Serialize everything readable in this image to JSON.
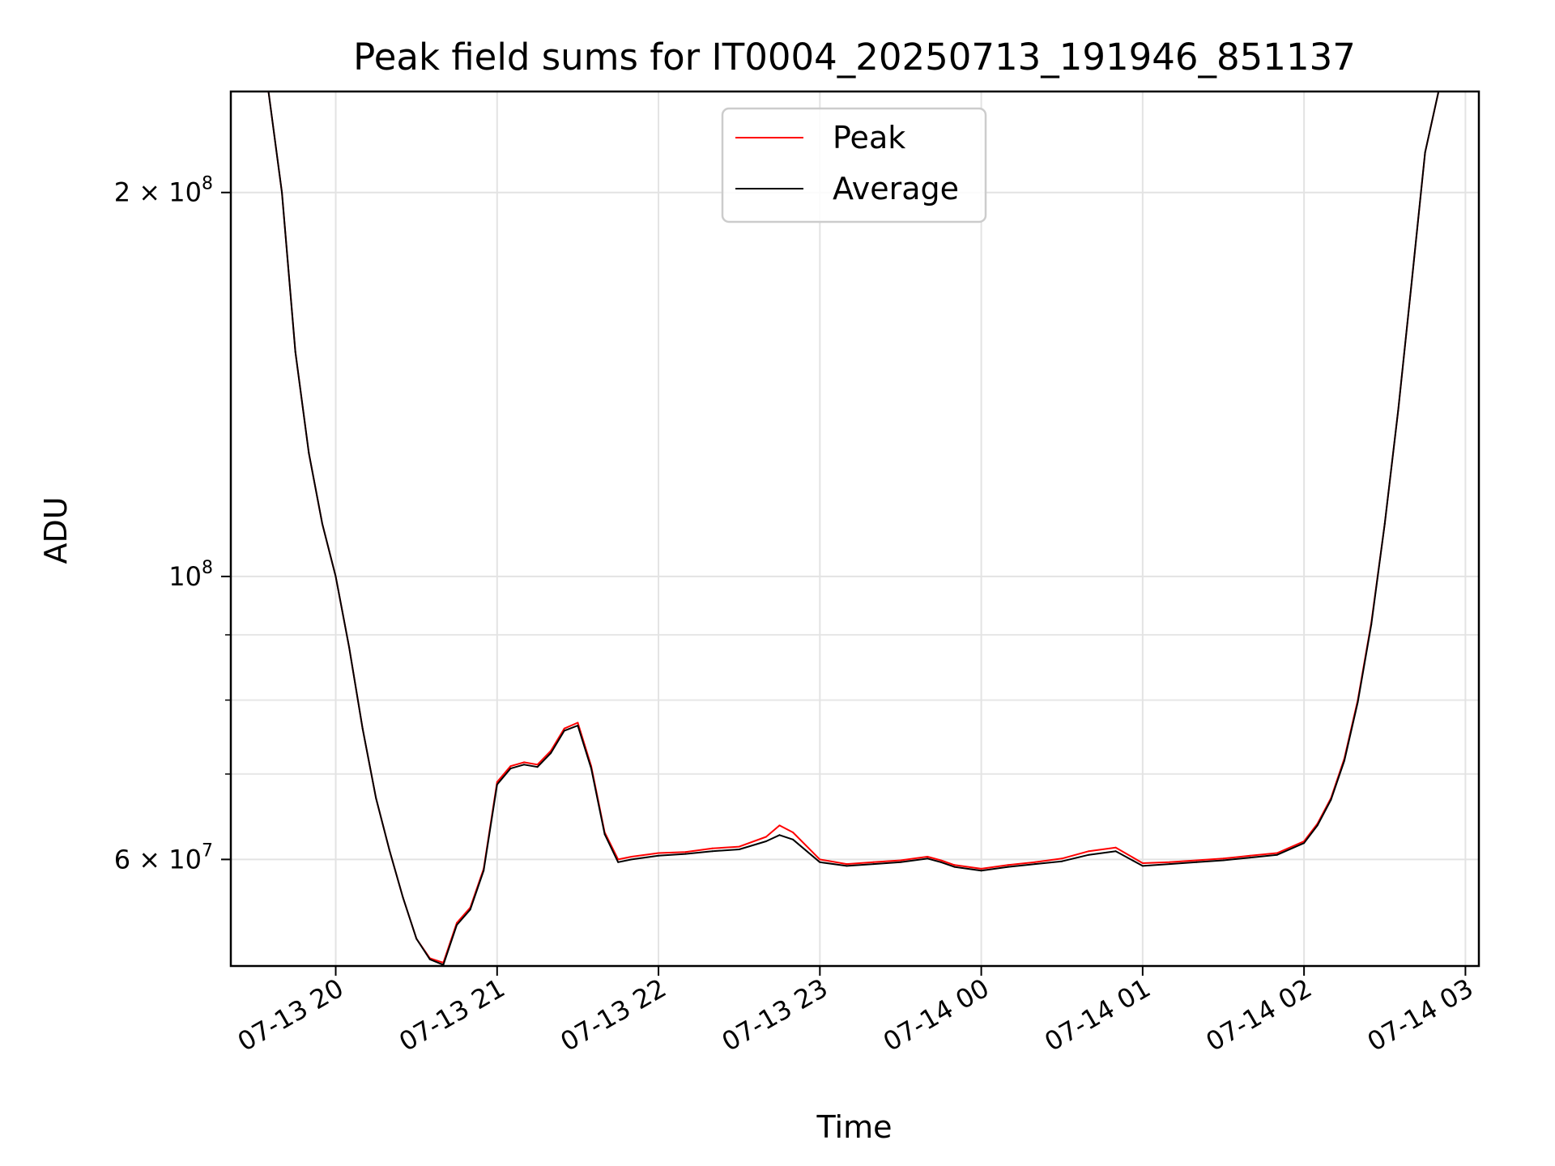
{
  "chart_data": {
    "type": "line",
    "title": "Peak field sums for IT0004_20250713_191946_851137",
    "xlabel": "Time",
    "ylabel": "ADU",
    "y_scale": "log",
    "ylim": [
      49500000,
      240000000
    ],
    "xlim": [
      "2025-07-13 19:21",
      "2025-07-14 03:05"
    ],
    "grid": true,
    "legend": "upper center",
    "x_ticks": [
      {
        "value": "2025-07-13 20:00",
        "label": "07-13 20"
      },
      {
        "value": "2025-07-13 21:00",
        "label": "07-13 21"
      },
      {
        "value": "2025-07-13 22:00",
        "label": "07-13 22"
      },
      {
        "value": "2025-07-13 23:00",
        "label": "07-13 23"
      },
      {
        "value": "2025-07-14 00:00",
        "label": "07-14 00"
      },
      {
        "value": "2025-07-14 01:00",
        "label": "07-14 01"
      },
      {
        "value": "2025-07-14 02:00",
        "label": "07-14 02"
      },
      {
        "value": "2025-07-14 03:00",
        "label": "07-14 03"
      }
    ],
    "y_ticks": [
      {
        "value": 200000000,
        "label": "2 × 10",
        "exp": "8"
      },
      {
        "value": 100000000,
        "label": "10",
        "exp": "8"
      },
      {
        "value": 60000000,
        "label": "6 × 10",
        "exp": "7"
      }
    ],
    "y_minor_ticks": [
      70000000,
      80000000,
      90000000
    ],
    "series": [
      {
        "name": "Peak",
        "color": "#ff0000",
        "x": [
          "2025-07-13 19:35",
          "2025-07-13 19:40",
          "2025-07-13 19:45",
          "2025-07-13 19:50",
          "2025-07-13 19:55",
          "2025-07-13 20:00",
          "2025-07-13 20:05",
          "2025-07-13 20:10",
          "2025-07-13 20:15",
          "2025-07-13 20:20",
          "2025-07-13 20:25",
          "2025-07-13 20:30",
          "2025-07-13 20:35",
          "2025-07-13 20:40",
          "2025-07-13 20:45",
          "2025-07-13 20:50",
          "2025-07-13 20:55",
          "2025-07-13 21:00",
          "2025-07-13 21:05",
          "2025-07-13 21:10",
          "2025-07-13 21:15",
          "2025-07-13 21:20",
          "2025-07-13 21:25",
          "2025-07-13 21:30",
          "2025-07-13 21:35",
          "2025-07-13 21:40",
          "2025-07-13 21:45",
          "2025-07-13 21:50",
          "2025-07-13 22:00",
          "2025-07-13 22:10",
          "2025-07-13 22:20",
          "2025-07-13 22:30",
          "2025-07-13 22:40",
          "2025-07-13 22:45",
          "2025-07-13 22:50",
          "2025-07-13 23:00",
          "2025-07-13 23:10",
          "2025-07-13 23:20",
          "2025-07-13 23:30",
          "2025-07-13 23:40",
          "2025-07-13 23:45",
          "2025-07-13 23:50",
          "2025-07-14 00:00",
          "2025-07-14 00:10",
          "2025-07-14 00:20",
          "2025-07-14 00:30",
          "2025-07-14 00:40",
          "2025-07-14 00:50",
          "2025-07-14 01:00",
          "2025-07-14 01:10",
          "2025-07-14 01:20",
          "2025-07-14 01:30",
          "2025-07-14 01:40",
          "2025-07-14 01:50",
          "2025-07-14 02:00",
          "2025-07-14 02:05",
          "2025-07-14 02:10",
          "2025-07-14 02:15",
          "2025-07-14 02:20",
          "2025-07-14 02:25",
          "2025-07-14 02:30",
          "2025-07-14 02:35",
          "2025-07-14 02:40",
          "2025-07-14 02:45",
          "2025-07-14 02:50"
        ],
        "values": [
          240000000,
          200000000,
          150000000,
          125000000,
          110000000,
          100000000,
          88000000,
          76000000,
          67000000,
          61000000,
          56000000,
          52000000,
          50200000,
          49800000,
          53500000,
          55000000,
          59000000,
          69000000,
          71000000,
          71500000,
          71200000,
          73000000,
          76000000,
          76800000,
          71000000,
          63000000,
          60000000,
          60300000,
          60700000,
          60800000,
          61200000,
          61400000,
          62500000,
          63800000,
          63000000,
          60000000,
          59500000,
          59700000,
          59900000,
          60300000,
          59900000,
          59400000,
          59000000,
          59400000,
          59700000,
          60100000,
          60900000,
          61300000,
          59600000,
          59700000,
          59900000,
          60100000,
          60400000,
          60700000,
          62000000,
          64000000,
          67000000,
          72000000,
          80000000,
          92000000,
          110000000,
          135000000,
          170000000,
          215000000,
          240000000
        ]
      },
      {
        "name": "Average",
        "color": "#000000",
        "x": [
          "2025-07-13 19:35",
          "2025-07-13 19:40",
          "2025-07-13 19:45",
          "2025-07-13 19:50",
          "2025-07-13 19:55",
          "2025-07-13 20:00",
          "2025-07-13 20:05",
          "2025-07-13 20:10",
          "2025-07-13 20:15",
          "2025-07-13 20:20",
          "2025-07-13 20:25",
          "2025-07-13 20:30",
          "2025-07-13 20:35",
          "2025-07-13 20:40",
          "2025-07-13 20:45",
          "2025-07-13 20:50",
          "2025-07-13 20:55",
          "2025-07-13 21:00",
          "2025-07-13 21:05",
          "2025-07-13 21:10",
          "2025-07-13 21:15",
          "2025-07-13 21:20",
          "2025-07-13 21:25",
          "2025-07-13 21:30",
          "2025-07-13 21:35",
          "2025-07-13 21:40",
          "2025-07-13 21:45",
          "2025-07-13 21:50",
          "2025-07-13 22:00",
          "2025-07-13 22:10",
          "2025-07-13 22:20",
          "2025-07-13 22:30",
          "2025-07-13 22:40",
          "2025-07-13 22:45",
          "2025-07-13 22:50",
          "2025-07-13 23:00",
          "2025-07-13 23:10",
          "2025-07-13 23:20",
          "2025-07-13 23:30",
          "2025-07-13 23:40",
          "2025-07-13 23:45",
          "2025-07-13 23:50",
          "2025-07-14 00:00",
          "2025-07-14 00:10",
          "2025-07-14 00:20",
          "2025-07-14 00:30",
          "2025-07-14 00:40",
          "2025-07-14 00:50",
          "2025-07-14 01:00",
          "2025-07-14 01:10",
          "2025-07-14 01:20",
          "2025-07-14 01:30",
          "2025-07-14 01:40",
          "2025-07-14 01:50",
          "2025-07-14 02:00",
          "2025-07-14 02:05",
          "2025-07-14 02:10",
          "2025-07-14 02:15",
          "2025-07-14 02:20",
          "2025-07-14 02:25",
          "2025-07-14 02:30",
          "2025-07-14 02:35",
          "2025-07-14 02:40",
          "2025-07-14 02:45",
          "2025-07-14 02:50"
        ],
        "values": [
          240000000,
          200000000,
          150000000,
          125000000,
          110000000,
          100000000,
          88000000,
          76000000,
          67000000,
          61000000,
          56000000,
          52000000,
          50100000,
          49600000,
          53300000,
          54800000,
          58800000,
          68700000,
          70700000,
          71200000,
          70900000,
          72700000,
          75700000,
          76400000,
          70700000,
          62800000,
          59700000,
          60000000,
          60400000,
          60600000,
          60900000,
          61100000,
          62000000,
          62700000,
          62200000,
          59700000,
          59300000,
          59500000,
          59700000,
          60100000,
          59700000,
          59200000,
          58800000,
          59200000,
          59500000,
          59800000,
          60500000,
          60900000,
          59300000,
          59500000,
          59700000,
          59900000,
          60200000,
          60500000,
          61800000,
          63800000,
          66800000,
          71700000,
          79700000,
          91700000,
          110000000,
          135000000,
          170000000,
          215000000,
          240000000
        ]
      }
    ]
  }
}
